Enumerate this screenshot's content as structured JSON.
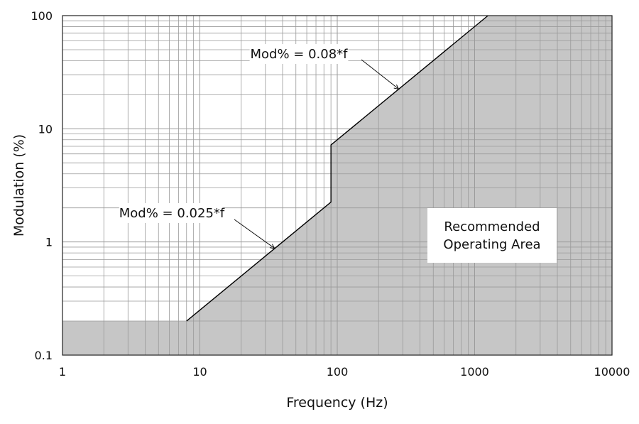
{
  "chart_data": {
    "type": "area",
    "x_scale": "log",
    "y_scale": "log",
    "xlim": [
      1,
      10000
    ],
    "ylim": [
      0.1,
      100
    ],
    "xlabel": "Frequency (Hz)",
    "ylabel": "Modulation (%)",
    "x_ticks": [
      "1",
      "10",
      "100",
      "1000",
      "10000"
    ],
    "y_ticks": [
      "0.1",
      "1",
      "10",
      "100"
    ],
    "grid": true,
    "colors": {
      "region_fill": "#c6c6c6",
      "boundary_line": "#000000",
      "grid": "#9a9a9a"
    },
    "boundary": {
      "x": [
        1,
        8,
        90,
        90,
        1250,
        10000
      ],
      "y": [
        0.2,
        0.2,
        2.25,
        7.2,
        100,
        100
      ]
    },
    "annotations": [
      {
        "text": "Mod% = 0.025*f",
        "points_to": {
          "x": 35,
          "y": 0.875
        }
      },
      {
        "text": "Mod% = 0.08*f",
        "points_to": {
          "x": 280,
          "y": 22.4
        }
      }
    ],
    "region_label": [
      "Recommended",
      "Operating Area"
    ]
  }
}
